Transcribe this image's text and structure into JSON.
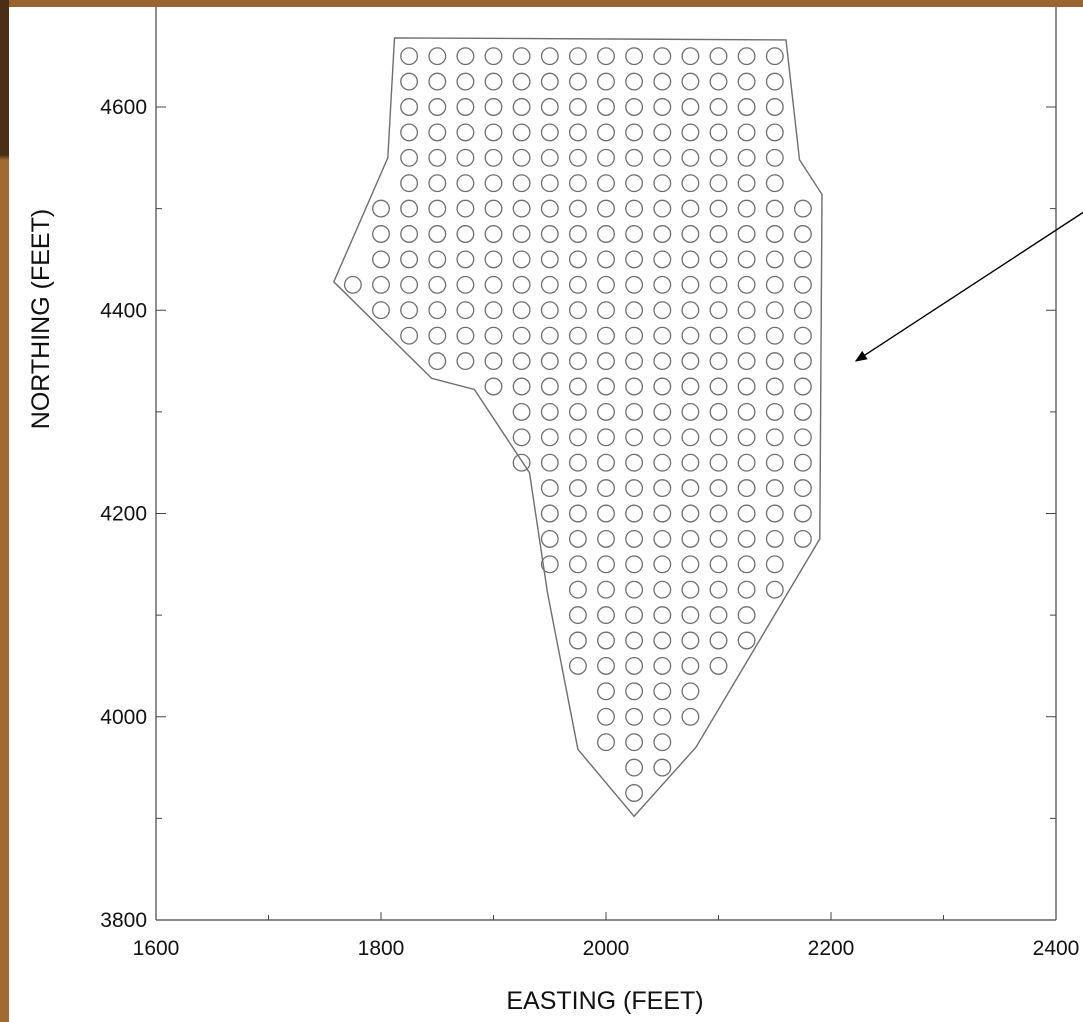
{
  "chart_data": {
    "type": "scatter",
    "title": "",
    "xlabel": "EASTING (FEET)",
    "ylabel": "NORTHING (FEET)",
    "xlim": [
      1600,
      2400
    ],
    "ylim": [
      3800,
      4690
    ],
    "x_ticks": [
      1600,
      1800,
      2000,
      2200,
      2400
    ],
    "y_ticks": [
      3800,
      4000,
      4200,
      4400,
      4600
    ],
    "grid": false,
    "marker": "open-circle",
    "colors": {
      "marker": "#6e6e6e",
      "boundary": "#6e6e6e",
      "axis": "#444444",
      "frame": "#a06a30"
    },
    "boundary_polygon": [
      [
        1812,
        4668
      ],
      [
        2160,
        4666
      ],
      [
        2172,
        4548
      ],
      [
        2192,
        4514
      ],
      [
        2190,
        4175
      ],
      [
        2080,
        3970
      ],
      [
        2025,
        3902
      ],
      [
        1975,
        3968
      ],
      [
        1948,
        4122
      ],
      [
        1932,
        4240
      ],
      [
        1883,
        4322
      ],
      [
        1845,
        4333
      ],
      [
        1758,
        4428
      ],
      [
        1806,
        4550
      ]
    ],
    "rows": [
      {
        "y": 4650,
        "x_start": 1825,
        "x_end": 2150
      },
      {
        "y": 4625,
        "x_start": 1825,
        "x_end": 2150
      },
      {
        "y": 4600,
        "x_start": 1825,
        "x_end": 2150
      },
      {
        "y": 4575,
        "x_start": 1825,
        "x_end": 2150
      },
      {
        "y": 4550,
        "x_start": 1825,
        "x_end": 2150
      },
      {
        "y": 4525,
        "x_start": 1825,
        "x_end": 2150
      },
      {
        "y": 4500,
        "x_start": 1800,
        "x_end": 2175
      },
      {
        "y": 4475,
        "x_start": 1800,
        "x_end": 2175
      },
      {
        "y": 4450,
        "x_start": 1800,
        "x_end": 2175
      },
      {
        "y": 4425,
        "x_start": 1775,
        "x_end": 2175
      },
      {
        "y": 4400,
        "x_start": 1800,
        "x_end": 2175
      },
      {
        "y": 4375,
        "x_start": 1825,
        "x_end": 2175
      },
      {
        "y": 4350,
        "x_start": 1850,
        "x_end": 2175
      },
      {
        "y": 4325,
        "x_start": 1900,
        "x_end": 2175
      },
      {
        "y": 4300,
        "x_start": 1925,
        "x_end": 2175
      },
      {
        "y": 4275,
        "x_start": 1925,
        "x_end": 2175
      },
      {
        "y": 4250,
        "x_start": 1925,
        "x_end": 2175
      },
      {
        "y": 4225,
        "x_start": 1950,
        "x_end": 2175
      },
      {
        "y": 4200,
        "x_start": 1950,
        "x_end": 2175
      },
      {
        "y": 4175,
        "x_start": 1950,
        "x_end": 2175
      },
      {
        "y": 4150,
        "x_start": 1950,
        "x_end": 2150
      },
      {
        "y": 4125,
        "x_start": 1975,
        "x_end": 2150
      },
      {
        "y": 4100,
        "x_start": 1975,
        "x_end": 2125
      },
      {
        "y": 4075,
        "x_start": 1975,
        "x_end": 2125
      },
      {
        "y": 4050,
        "x_start": 1975,
        "x_end": 2100
      },
      {
        "y": 4025,
        "x_start": 2000,
        "x_end": 2075
      },
      {
        "y": 4000,
        "x_start": 2000,
        "x_end": 2075
      },
      {
        "y": 3975,
        "x_start": 2000,
        "x_end": 2050
      },
      {
        "y": 3950,
        "x_start": 2025,
        "x_end": 2050
      },
      {
        "y": 3925,
        "x_start": 2025,
        "x_end": 2025
      }
    ],
    "spacing": 25,
    "annotation": {
      "type": "arrow",
      "from": [
        2450,
        4515
      ],
      "to": [
        2222,
        4350
      ]
    }
  }
}
